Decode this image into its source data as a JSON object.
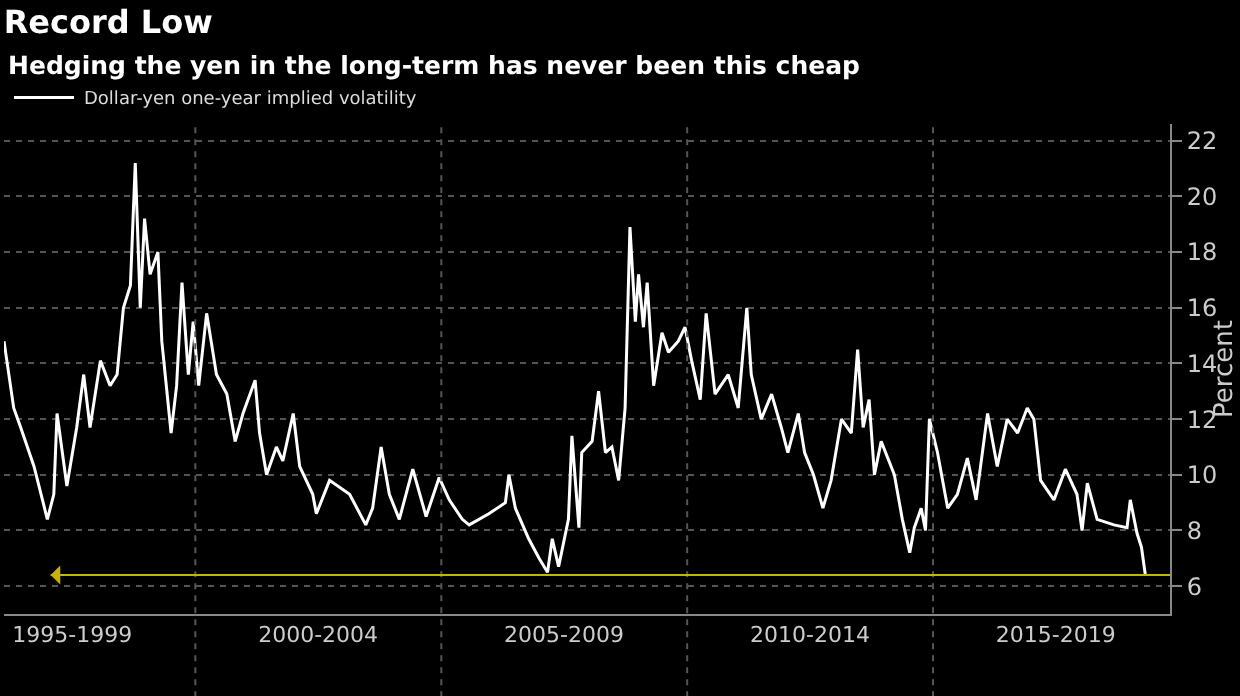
{
  "chart_data": {
    "type": "line",
    "title": "Record Low",
    "subtitle": "Hedging the yen in the long-term has never been this cheap",
    "ylabel": "Percent",
    "x": [
      "1996-02-10",
      "1996-04-22",
      "1996-06-13",
      "1996-09-20",
      "1996-12-28",
      "1997-02-14",
      "1997-03-10",
      "1997-05-22",
      "1997-08-03",
      "1997-09-24",
      "1997-11-10",
      "1998-01-26",
      "1998-04-08",
      "1998-05-30",
      "1998-07-16",
      "1998-09-06",
      "1998-10-12",
      "1998-11-18",
      "1998-12-20",
      "1999-01-30",
      "1999-03-29",
      "1999-04-27",
      "1999-07-05",
      "1999-08-15",
      "1999-09-24",
      "1999-11-10",
      "1999-12-16",
      "2000-01-26",
      "2000-03-25",
      "2000-06-06",
      "2000-08-22",
      "2000-10-23",
      "2000-12-20",
      "2001-03-20",
      "2001-04-22",
      "2001-06-13",
      "2001-08-25",
      "2001-10-12",
      "2001-12-28",
      "2002-02-14",
      "2002-05-22",
      "2002-06-18",
      "2002-09-24",
      "2003-02-20",
      "2003-06-20",
      "2003-08-10",
      "2003-10-12",
      "2003-12-12",
      "2004-02-24",
      "2004-06-03",
      "2004-09-10",
      "2004-12-16",
      "2005-03-01",
      "2005-06-06",
      "2005-07-27",
      "2005-12-20",
      "2006-04-22",
      "2006-05-18",
      "2006-07-05",
      "2006-10-12",
      "2006-12-28",
      "2007-03-01",
      "2007-04-05",
      "2007-05-22",
      "2007-08-03",
      "2007-08-29",
      "2007-10-20",
      "2007-11-10",
      "2008-01-26",
      "2008-03-14",
      "2008-05-04",
      "2008-06-21",
      "2008-08-10",
      "2008-09-27",
      "2008-11-02",
      "2008-12-12",
      "2009-01-05",
      "2009-02-10",
      "2009-03-10",
      "2009-04-27",
      "2009-06-28",
      "2009-08-15",
      "2009-10-27",
      "2009-12-16",
      "2010-02-03",
      "2010-04-08",
      "2010-05-22",
      "2010-07-27",
      "2010-11-02",
      "2011-01-15",
      "2011-03-20",
      "2011-04-22",
      "2011-07-05",
      "2011-09-20",
      "2011-12-01",
      "2012-01-19",
      "2012-04-05",
      "2012-05-22",
      "2012-07-27",
      "2012-10-05",
      "2012-12-05",
      "2013-02-20",
      "2013-05-04",
      "2013-06-20",
      "2013-07-31",
      "2013-09-13",
      "2013-10-23",
      "2013-12-12",
      "2014-03-20",
      "2014-05-18",
      "2014-07-12",
      "2014-08-15",
      "2014-10-05",
      "2014-11-06",
      "2014-12-05",
      "2015-02-03",
      "2015-04-20",
      "2015-07-01",
      "2015-09-13",
      "2015-11-17",
      "2016-02-10",
      "2016-04-22",
      "2016-07-05",
      "2016-09-20",
      "2016-12-01",
      "2017-01-19",
      "2017-03-10",
      "2017-06-17",
      "2017-09-10",
      "2017-12-05",
      "2018-01-12",
      "2018-02-20",
      "2018-05-04",
      "2018-09-06",
      "2018-12-12",
      "2019-01-05",
      "2019-02-24",
      "2019-03-29",
      "2019-04-27"
    ],
    "series": [
      {
        "name": "Dollar-yen one-year implied volatility",
        "color": "#ffffff",
        "values": [
          14.8,
          12.4,
          11.7,
          10.3,
          8.4,
          9.3,
          12.2,
          9.6,
          11.7,
          13.6,
          11.7,
          14.1,
          13.2,
          13.6,
          16.0,
          16.8,
          21.2,
          16.0,
          19.2,
          17.2,
          18.0,
          14.8,
          11.5,
          13.2,
          16.9,
          13.6,
          15.5,
          13.2,
          15.8,
          13.6,
          12.9,
          11.2,
          12.2,
          13.4,
          11.5,
          10.0,
          11.0,
          10.5,
          12.2,
          10.3,
          9.3,
          8.6,
          9.8,
          9.3,
          8.2,
          8.8,
          11.0,
          9.3,
          8.4,
          10.2,
          8.5,
          9.9,
          9.1,
          8.4,
          8.2,
          8.6,
          9.0,
          10.0,
          8.8,
          7.7,
          7.0,
          6.5,
          7.7,
          6.7,
          8.4,
          11.4,
          8.1,
          10.8,
          11.2,
          13.0,
          10.8,
          11.0,
          9.8,
          12.4,
          18.9,
          15.5,
          17.2,
          15.3,
          16.9,
          13.2,
          15.1,
          14.4,
          14.8,
          15.3,
          14.1,
          12.7,
          15.8,
          12.9,
          13.6,
          12.4,
          16.0,
          13.6,
          12.0,
          12.9,
          11.7,
          10.8,
          12.2,
          10.8,
          10.0,
          8.8,
          9.8,
          12.0,
          11.5,
          14.5,
          11.7,
          12.7,
          10.0,
          11.2,
          10.0,
          8.4,
          7.2,
          8.1,
          8.8,
          8.0,
          12.0,
          10.8,
          8.8,
          9.3,
          10.6,
          9.1,
          12.2,
          10.3,
          12.0,
          11.5,
          12.4,
          12.0,
          9.8,
          9.1,
          10.2,
          9.3,
          8.0,
          9.7,
          8.4,
          8.2,
          8.1,
          9.1,
          7.9,
          7.4,
          6.4
        ]
      }
    ],
    "xlim": [
      "1996-02-10",
      "2019-10-27"
    ],
    "xticks": [
      {
        "value": "1997-07-01",
        "label": "1995-1999"
      },
      {
        "value": "2000-01-01",
        "label": null
      },
      {
        "value": "2002-07-01",
        "label": "2000-2004"
      },
      {
        "value": "2005-01-01",
        "label": null
      },
      {
        "value": "2007-07-01",
        "label": "2005-2009"
      },
      {
        "value": "2010-01-01",
        "label": null
      },
      {
        "value": "2012-07-01",
        "label": "2010-2014"
      },
      {
        "value": "2015-01-01",
        "label": null
      },
      {
        "value": "2017-07-01",
        "label": "2015-2019"
      }
    ],
    "ylim": [
      5,
      22.6
    ],
    "yticks": [
      6,
      8,
      10,
      12,
      14,
      16,
      18,
      20,
      22
    ],
    "ref_lines": [
      {
        "axis": "y",
        "value": 6.4,
        "color": "#c8b400"
      }
    ],
    "grid": true,
    "legend": "top left",
    "marker": "none",
    "line_style": "solid"
  }
}
